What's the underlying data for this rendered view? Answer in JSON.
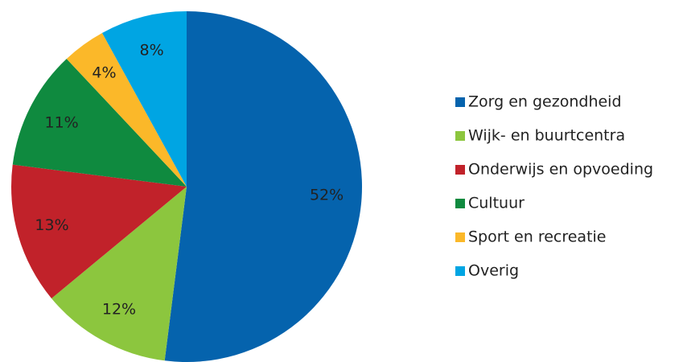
{
  "chart_data": {
    "type": "pie",
    "categories": [
      "Zorg en gezondheid",
      "Wijk- en buurtcentra",
      "Onderwijs en opvoeding",
      "Cultuur",
      "Sport en recreatie",
      "Overig"
    ],
    "values": [
      52,
      12,
      13,
      11,
      4,
      8
    ],
    "value_labels": [
      "52%",
      "12%",
      "13%",
      "11%",
      "4%",
      "8%"
    ],
    "colors": [
      "#0563ad",
      "#8cc63e",
      "#c1222a",
      "#0f8a3f",
      "#fbb829",
      "#00a5e3"
    ],
    "legend": "right"
  }
}
